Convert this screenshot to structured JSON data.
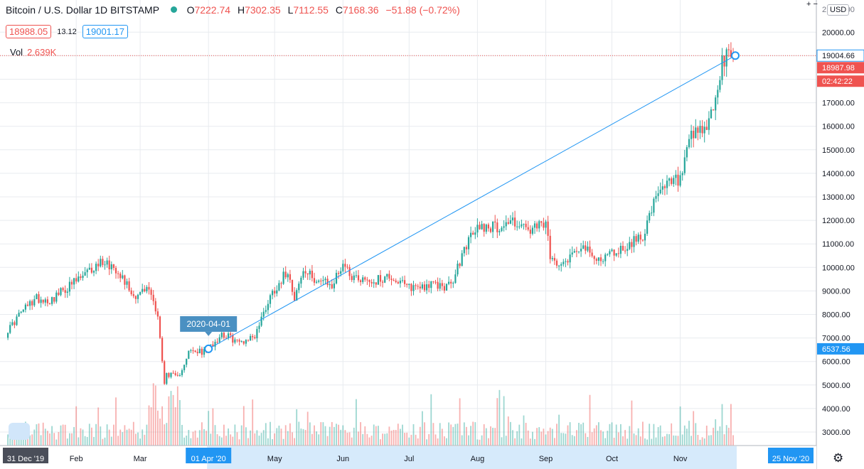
{
  "header": {
    "symbol": "Bitcoin / U.S. Dollar",
    "interval": "1D",
    "exchange": "BITSTAMP",
    "o_label": "O",
    "o_value": "7222.74",
    "h_label": "H",
    "h_value": "7302.35",
    "l_label": "L",
    "l_value": "7112.55",
    "c_label": "C",
    "c_value": "7168.36",
    "change": "−51.88 (−0.72%)",
    "bid": "18988.05",
    "spread": "13.12",
    "ask": "19001.17",
    "vol_label": "Vol",
    "vol_value": "2.639K"
  },
  "toolbar": {
    "currency": "USD",
    "zoom": "+ −"
  },
  "colors": {
    "up": "#26a69a",
    "down": "#ef5350",
    "line": "#2196f3",
    "grid": "#e8ebef"
  },
  "price_labels": {
    "last": "19004.66",
    "bid_level": "18987.98",
    "countdown": "02:42:22",
    "anchor": "6537.56",
    "top_partial": "21000.00",
    "date_tag": "2020-04-01",
    "start_date": "31 Dec '19",
    "mid_date": "01 Apr '20",
    "end_date": "25 Nov '20"
  },
  "chart_data": {
    "type": "candlestick",
    "title": "Bitcoin / U.S. Dollar",
    "ylim": [
      2500,
      21300
    ],
    "y_ticks": [
      "3000.00",
      "4000.00",
      "5000.00",
      "6000.00",
      "7000.00",
      "8000.00",
      "9000.00",
      "10000.00",
      "11000.00",
      "12000.00",
      "13000.00",
      "14000.00",
      "15000.00",
      "16000.00",
      "17000.00",
      "18000.00",
      "19000.00",
      "20000.00"
    ],
    "x_ticks": [
      "Feb",
      "Mar",
      "May",
      "Jun",
      "Jul",
      "Aug",
      "Sep",
      "Oct",
      "Nov"
    ],
    "x_start": "2019-12-31",
    "x_end": "2020-11-25",
    "price_path": [
      [
        "2019-12-31",
        7170
      ],
      [
        "2020-01-07",
        8100
      ],
      [
        "2020-01-14",
        8700
      ],
      [
        "2020-01-20",
        8600
      ],
      [
        "2020-01-31",
        9350
      ],
      [
        "2020-02-06",
        9750
      ],
      [
        "2020-02-13",
        10300
      ],
      [
        "2020-02-20",
        9900
      ],
      [
        "2020-02-27",
        8800
      ],
      [
        "2020-03-05",
        9100
      ],
      [
        "2020-03-09",
        8000
      ],
      [
        "2020-03-12",
        5000
      ],
      [
        "2020-03-13",
        5500
      ],
      [
        "2020-03-18",
        5300
      ],
      [
        "2020-03-23",
        6400
      ],
      [
        "2020-03-30",
        6400
      ],
      [
        "2020-04-01",
        6550
      ],
      [
        "2020-04-07",
        7200
      ],
      [
        "2020-04-15",
        6800
      ],
      [
        "2020-04-22",
        7100
      ],
      [
        "2020-04-29",
        8800
      ],
      [
        "2020-05-07",
        9900
      ],
      [
        "2020-05-10",
        8750
      ],
      [
        "2020-05-14",
        9800
      ],
      [
        "2020-05-20",
        9500
      ],
      [
        "2020-05-27",
        9200
      ],
      [
        "2020-06-01",
        10200
      ],
      [
        "2020-06-05",
        9650
      ],
      [
        "2020-06-15",
        9400
      ],
      [
        "2020-06-22",
        9650
      ],
      [
        "2020-06-30",
        9150
      ],
      [
        "2020-07-10",
        9250
      ],
      [
        "2020-07-20",
        9200
      ],
      [
        "2020-07-27",
        11000
      ],
      [
        "2020-08-02",
        11800
      ],
      [
        "2020-08-10",
        11700
      ],
      [
        "2020-08-17",
        12000
      ],
      [
        "2020-08-25",
        11500
      ],
      [
        "2020-09-01",
        11900
      ],
      [
        "2020-09-03",
        10300
      ],
      [
        "2020-09-10",
        10300
      ],
      [
        "2020-09-17",
        11000
      ],
      [
        "2020-09-23",
        10300
      ],
      [
        "2020-10-01",
        10600
      ],
      [
        "2020-10-08",
        10900
      ],
      [
        "2020-10-15",
        11400
      ],
      [
        "2020-10-21",
        12900
      ],
      [
        "2020-10-27",
        13600
      ],
      [
        "2020-11-01",
        13700
      ],
      [
        "2020-11-06",
        15500
      ],
      [
        "2020-11-12",
        15800
      ],
      [
        "2020-11-16",
        16700
      ],
      [
        "2020-11-20",
        18600
      ],
      [
        "2020-11-24",
        19100
      ],
      [
        "2020-11-25",
        19000
      ]
    ],
    "trend_line": {
      "from": [
        "2020-04-01",
        6537.56
      ],
      "to": [
        "2020-11-25",
        19004.66
      ]
    },
    "volume": {
      "shown": true
    }
  }
}
